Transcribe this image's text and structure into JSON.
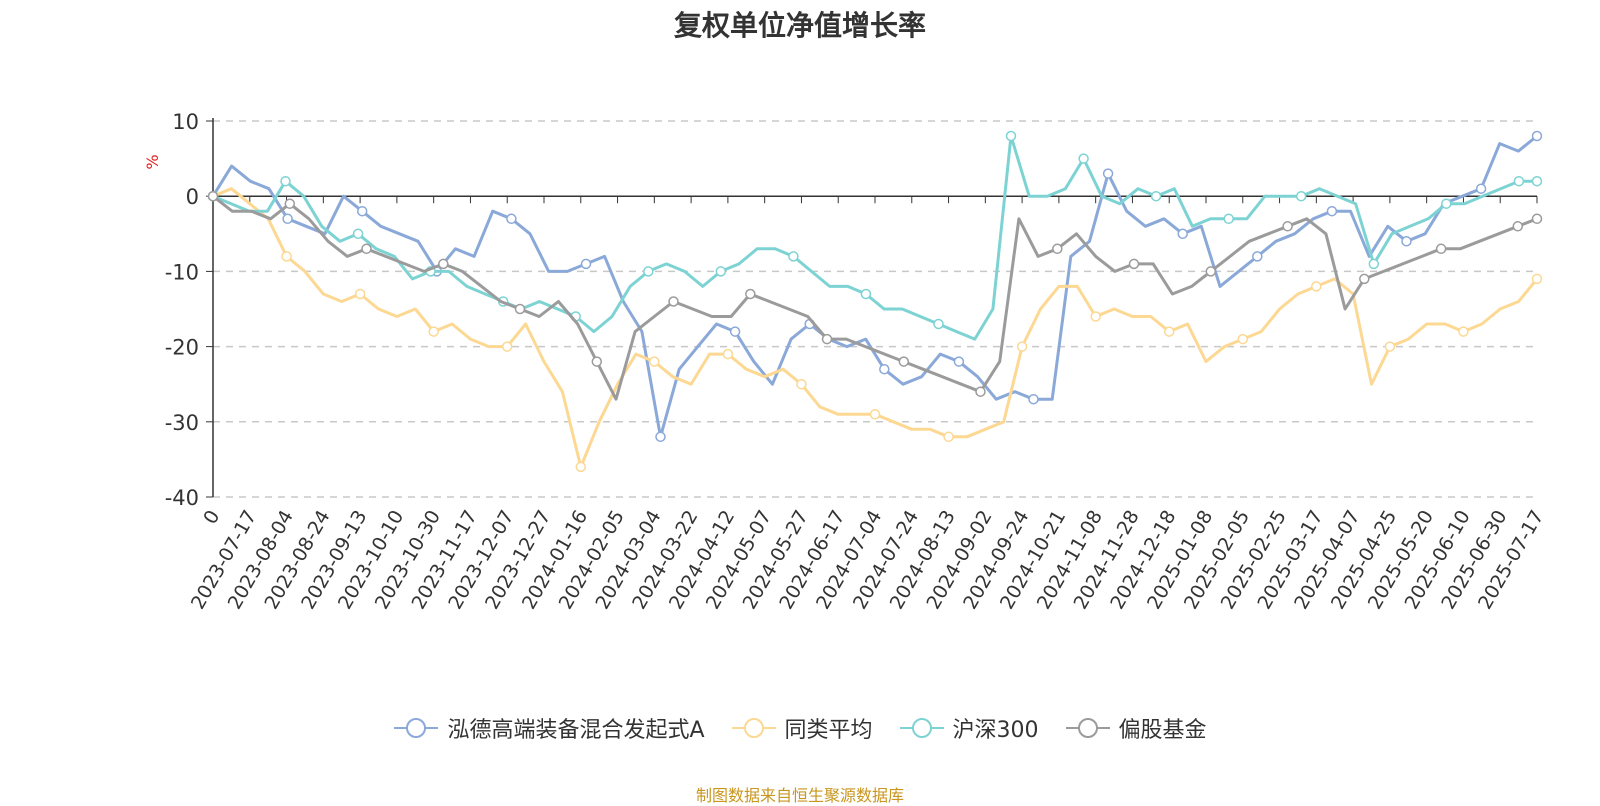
{
  "source_note": "制图数据来自恒生聚源数据库",
  "colors": {
    "fund": "#8aa8d8",
    "peer": "#fcd893",
    "hs300": "#7dd3d3",
    "equity": "#9b9b9b",
    "source": "#c8961e",
    "unit": "#e02020"
  },
  "chart_data": {
    "type": "line",
    "title": "复权单位净值增长率",
    "xlabel": "",
    "ylabel": "%",
    "ylim": [
      -40,
      10
    ],
    "yticks": [
      -40,
      -30,
      -20,
      -10,
      0,
      10
    ],
    "grid": true,
    "legend_position": "bottom",
    "x_ticklabels": [
      "0",
      "2023-07-17",
      "2023-08-04",
      "2023-08-24",
      "2023-09-13",
      "2023-10-10",
      "2023-10-30",
      "2023-11-17",
      "2023-12-07",
      "2023-12-27",
      "2024-01-16",
      "2024-02-05",
      "2024-03-04",
      "2024-03-22",
      "2024-04-12",
      "2024-05-07",
      "2024-05-27",
      "2024-06-17",
      "2024-07-04",
      "2024-07-24",
      "2024-08-13",
      "2024-09-02",
      "2024-09-24",
      "2024-10-21",
      "2024-11-08",
      "2024-11-28",
      "2024-12-18",
      "2025-01-08",
      "2025-02-05",
      "2025-02-25",
      "2025-03-17",
      "2025-04-07",
      "2025-04-25",
      "2025-05-20",
      "2025-06-10",
      "2025-06-30",
      "2025-07-17"
    ],
    "series": [
      {
        "name": "泓德高端装备混合发起式A",
        "color": "#8aa8d8",
        "values": [
          0,
          4,
          2,
          1,
          -3,
          -4,
          -5,
          0,
          -2,
          -4,
          -5,
          -6,
          -10,
          -7,
          -8,
          -2,
          -3,
          -5,
          -10,
          -10,
          -9,
          -8,
          -14,
          -18,
          -32,
          -23,
          -20,
          -17,
          -18,
          -22,
          -25,
          -19,
          -17,
          -19,
          -20,
          -19,
          -23,
          -25,
          -24,
          -21,
          -22,
          -24,
          -27,
          -26,
          -27,
          -27,
          -8,
          -6,
          3,
          -2,
          -4,
          -3,
          -5,
          -4,
          -12,
          -10,
          -8,
          -6,
          -5,
          -3,
          -2,
          -2,
          -8,
          -4,
          -6,
          -5,
          -1,
          0,
          1,
          7,
          6,
          8
        ]
      },
      {
        "name": "同类平均",
        "color": "#fcd893",
        "values": [
          0,
          1,
          -1,
          -3,
          -8,
          -10,
          -13,
          -14,
          -13,
          -15,
          -16,
          -15,
          -18,
          -17,
          -19,
          -20,
          -20,
          -17,
          -22,
          -26,
          -36,
          -30,
          -25,
          -21,
          -22,
          -24,
          -25,
          -21,
          -21,
          -23,
          -24,
          -23,
          -25,
          -28,
          -29,
          -29,
          -29,
          -30,
          -31,
          -31,
          -32,
          -32,
          -31,
          -30,
          -20,
          -15,
          -12,
          -12,
          -16,
          -15,
          -16,
          -16,
          -18,
          -17,
          -22,
          -20,
          -19,
          -18,
          -15,
          -13,
          -12,
          -11,
          -13,
          -25,
          -20,
          -19,
          -17,
          -17,
          -18,
          -17,
          -15,
          -14,
          -11
        ]
      },
      {
        "name": "沪深300",
        "color": "#7dd3d3",
        "values": [
          0,
          -1,
          -2,
          -2,
          2,
          0,
          -4,
          -6,
          -5,
          -7,
          -8,
          -11,
          -10,
          -10,
          -12,
          -13,
          -14,
          -15,
          -14,
          -15,
          -16,
          -18,
          -16,
          -12,
          -10,
          -9,
          -10,
          -12,
          -10,
          -9,
          -7,
          -7,
          -8,
          -10,
          -12,
          -12,
          -13,
          -15,
          -15,
          -16,
          -17,
          -18,
          -19,
          -15,
          8,
          0,
          0,
          1,
          5,
          0,
          -1,
          1,
          0,
          1,
          -4,
          -3,
          -3,
          -3,
          0,
          0,
          0,
          1,
          0,
          -1,
          -9,
          -5,
          -4,
          -3,
          -1,
          -1,
          0,
          1,
          2,
          2
        ]
      },
      {
        "name": "偏股基金",
        "color": "#9b9b9b",
        "values": [
          0,
          -2,
          -2,
          -3,
          -1,
          -3,
          -6,
          -8,
          -7,
          -8,
          -9,
          -10,
          -9,
          -10,
          -12,
          -14,
          -15,
          -16,
          -14,
          -17,
          -22,
          -27,
          -18,
          -16,
          -14,
          -15,
          -16,
          -16,
          -13,
          -14,
          -15,
          -16,
          -19,
          -19,
          -20,
          -21,
          -22,
          -23,
          -24,
          -25,
          -26,
          -22,
          -3,
          -8,
          -7,
          -5,
          -8,
          -10,
          -9,
          -9,
          -13,
          -12,
          -10,
          -8,
          -6,
          -5,
          -4,
          -3,
          -5,
          -15,
          -11,
          -10,
          -9,
          -8,
          -7,
          -7,
          -6,
          -5,
          -4,
          -3
        ]
      }
    ]
  }
}
